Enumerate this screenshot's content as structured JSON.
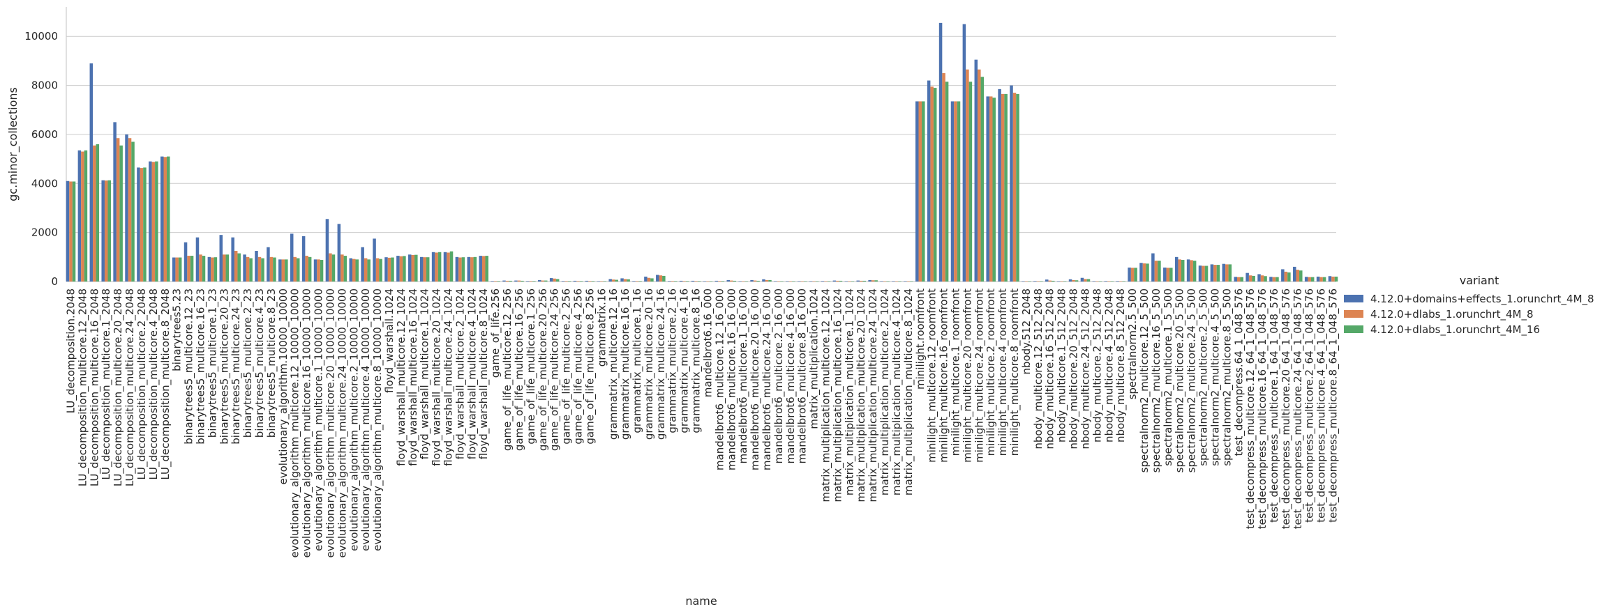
{
  "chart_data": {
    "type": "bar",
    "title": "",
    "xlabel": "name",
    "ylabel": "gc.minor_collections",
    "ylim": [
      0,
      11200
    ],
    "yticks": [
      0,
      2000,
      4000,
      6000,
      8000,
      10000
    ],
    "ytick_labels": [
      "0",
      "2000",
      "4000",
      "6000",
      "8000",
      "10000"
    ],
    "grid": "horizontal",
    "legend": {
      "title": "variant",
      "placement": "right"
    },
    "categories": [
      "LU_decomposition.2048",
      "LU_decomposition_multicore.12_2048",
      "LU_decomposition_multicore.16_2048",
      "LU_decomposition_multicore.1_2048",
      "LU_decomposition_multicore.20_2048",
      "LU_decomposition_multicore.24_2048",
      "LU_decomposition_multicore.2_2048",
      "LU_decomposition_multicore.4_2048",
      "LU_decomposition_multicore.8_2048",
      "binarytrees5.23",
      "binarytrees5_multicore.12_23",
      "binarytrees5_multicore.16_23",
      "binarytrees5_multicore.1_23",
      "binarytrees5_multicore.20_23",
      "binarytrees5_multicore.24_23",
      "binarytrees5_multicore.2_23",
      "binarytrees5_multicore.4_23",
      "binarytrees5_multicore.8_23",
      "evolutionary_algorithm.10000_10000",
      "evolutionary_algorithm_multicore.12_10000_10000",
      "evolutionary_algorithm_multicore.16_10000_10000",
      "evolutionary_algorithm_multicore.1_10000_10000",
      "evolutionary_algorithm_multicore.20_10000_10000",
      "evolutionary_algorithm_multicore.24_10000_10000",
      "evolutionary_algorithm_multicore.2_10000_10000",
      "evolutionary_algorithm_multicore.4_10000_10000",
      "evolutionary_algorithm_multicore.8_10000_10000",
      "floyd_warshall.1024",
      "floyd_warshall_multicore.12_1024",
      "floyd_warshall_multicore.16_1024",
      "floyd_warshall_multicore.1_1024",
      "floyd_warshall_multicore.20_1024",
      "floyd_warshall_multicore.24_1024",
      "floyd_warshall_multicore.2_1024",
      "floyd_warshall_multicore.4_1024",
      "floyd_warshall_multicore.8_1024",
      "game_of_life.256",
      "game_of_life_multicore.12_256",
      "game_of_life_multicore.16_256",
      "game_of_life_multicore.1_256",
      "game_of_life_multicore.20_256",
      "game_of_life_multicore.24_256",
      "game_of_life_multicore.2_256",
      "game_of_life_multicore.4_256",
      "game_of_life_multicore.8_256",
      "grammatrix.16",
      "grammatrix_multicore.12_16",
      "grammatrix_multicore.16_16",
      "grammatrix_multicore.1_16",
      "grammatrix_multicore.20_16",
      "grammatrix_multicore.24_16",
      "grammatrix_multicore.2_16",
      "grammatrix_multicore.4_16",
      "grammatrix_multicore.8_16",
      "mandelbrot6.16_000",
      "mandelbrot6_multicore.12_16_000",
      "mandelbrot6_multicore.16_16_000",
      "mandelbrot6_multicore.1_16_000",
      "mandelbrot6_multicore.20_16_000",
      "mandelbrot6_multicore.24_16_000",
      "mandelbrot6_multicore.2_16_000",
      "mandelbrot6_multicore.4_16_000",
      "mandelbrot6_multicore.8_16_000",
      "matrix_multiplication.1024",
      "matrix_multiplication_multicore.12_1024",
      "matrix_multiplication_multicore.16_1024",
      "matrix_multiplication_multicore.1_1024",
      "matrix_multiplication_multicore.20_1024",
      "matrix_multiplication_multicore.24_1024",
      "matrix_multiplication_multicore.2_1024",
      "matrix_multiplication_multicore.4_1024",
      "matrix_multiplication_multicore.8_1024",
      "minilight.roomfront",
      "minilight_multicore.12_roomfront",
      "minilight_multicore.16_roomfront",
      "minilight_multicore.1_roomfront",
      "minilight_multicore.20_roomfront",
      "minilight_multicore.24_roomfront",
      "minilight_multicore.2_roomfront",
      "minilight_multicore.4_roomfront",
      "minilight_multicore.8_roomfront",
      "nbody.512_2048",
      "nbody_multicore.12_512_2048",
      "nbody_multicore.16_512_2048",
      "nbody_multicore.1_512_2048",
      "nbody_multicore.20_512_2048",
      "nbody_multicore.24_512_2048",
      "nbody_multicore.2_512_2048",
      "nbody_multicore.4_512_2048",
      "nbody_multicore.8_512_2048",
      "spectralnorm2.5_500",
      "spectralnorm2_multicore.12_5_500",
      "spectralnorm2_multicore.16_5_500",
      "spectralnorm2_multicore.1_5_500",
      "spectralnorm2_multicore.20_5_500",
      "spectralnorm2_multicore.24_5_500",
      "spectralnorm2_multicore.2_5_500",
      "spectralnorm2_multicore.4_5_500",
      "spectralnorm2_multicore.8_5_500",
      "test_decompress.64_1_048_576",
      "test_decompress_multicore.12_64_1_048_576",
      "test_decompress_multicore.16_64_1_048_576",
      "test_decompress_multicore.1_64_1_048_576",
      "test_decompress_multicore.20_64_1_048_576",
      "test_decompress_multicore.24_64_1_048_576",
      "test_decompress_multicore.2_64_1_048_576",
      "test_decompress_multicore.4_64_1_048_576",
      "test_decompress_multicore.8_64_1_048_576"
    ],
    "series": [
      {
        "name": "4.12.0+domains+effects_1.orunchrt_4M_8",
        "color": "#4c72b0",
        "values": [
          4100,
          5350,
          8900,
          4130,
          6500,
          6000,
          4650,
          4900,
          5100,
          980,
          1600,
          1800,
          1000,
          1900,
          1800,
          1100,
          1250,
          1400,
          900,
          1950,
          1850,
          900,
          2550,
          2350,
          950,
          1400,
          1750,
          990,
          1050,
          1100,
          1000,
          1200,
          1200,
          1000,
          1000,
          1050,
          20,
          40,
          40,
          20,
          60,
          140,
          20,
          30,
          30,
          15,
          100,
          130,
          20,
          200,
          270,
          20,
          30,
          30,
          10,
          30,
          60,
          10,
          60,
          90,
          15,
          15,
          15,
          10,
          20,
          40,
          10,
          40,
          60,
          15,
          15,
          15,
          7350,
          8200,
          10550,
          7350,
          10500,
          9050,
          7550,
          7850,
          8000,
          10,
          20,
          80,
          10,
          90,
          150,
          15,
          20,
          20,
          570,
          760,
          1150,
          570,
          1000,
          900,
          650,
          700,
          720,
          190,
          350,
          300,
          190,
          500,
          600,
          190,
          200,
          220
        ]
      },
      {
        "name": "4.12.0+dlabs_1.orunchrt_4M_8",
        "color": "#dd8452",
        "values": [
          4080,
          5300,
          5550,
          4120,
          5850,
          5850,
          4630,
          4880,
          5080,
          980,
          1050,
          1100,
          980,
          1100,
          1250,
          1000,
          1000,
          1000,
          900,
          1000,
          1050,
          900,
          1150,
          1100,
          920,
          950,
          950,
          970,
          1030,
          1080,
          990,
          1180,
          1180,
          980,
          990,
          1040,
          20,
          30,
          40,
          20,
          40,
          120,
          20,
          20,
          20,
          15,
          80,
          100,
          20,
          150,
          250,
          20,
          20,
          20,
          10,
          20,
          40,
          10,
          40,
          60,
          10,
          10,
          10,
          10,
          15,
          30,
          10,
          30,
          50,
          10,
          10,
          10,
          7350,
          7950,
          8500,
          7350,
          8650,
          8650,
          7550,
          7650,
          7700,
          10,
          15,
          40,
          10,
          60,
          100,
          10,
          15,
          15,
          560,
          740,
          850,
          560,
          900,
          870,
          640,
          680,
          700,
          180,
          250,
          250,
          180,
          400,
          480,
          180,
          180,
          200
        ]
      },
      {
        "name": "4.12.0+dlabs_1.orunchrt_4M_16",
        "color": "#55a868",
        "values": [
          4080,
          5350,
          5600,
          4130,
          5550,
          5700,
          4650,
          4900,
          5100,
          980,
          1050,
          1050,
          990,
          1100,
          1150,
          950,
          950,
          980,
          900,
          950,
          1000,
          880,
          1100,
          1050,
          900,
          900,
          920,
          980,
          1040,
          1090,
          990,
          1200,
          1230,
          990,
          1000,
          1050,
          20,
          30,
          30,
          20,
          40,
          100,
          20,
          20,
          20,
          15,
          70,
          90,
          20,
          130,
          230,
          20,
          20,
          20,
          10,
          20,
          30,
          10,
          30,
          60,
          10,
          10,
          10,
          10,
          15,
          30,
          10,
          30,
          50,
          10,
          10,
          10,
          7350,
          7900,
          8150,
          7350,
          8150,
          8350,
          7500,
          7650,
          7650,
          10,
          15,
          30,
          10,
          50,
          100,
          10,
          15,
          15,
          560,
          730,
          850,
          560,
          880,
          850,
          640,
          680,
          700,
          180,
          230,
          220,
          180,
          370,
          450,
          180,
          180,
          200
        ]
      }
    ]
  }
}
